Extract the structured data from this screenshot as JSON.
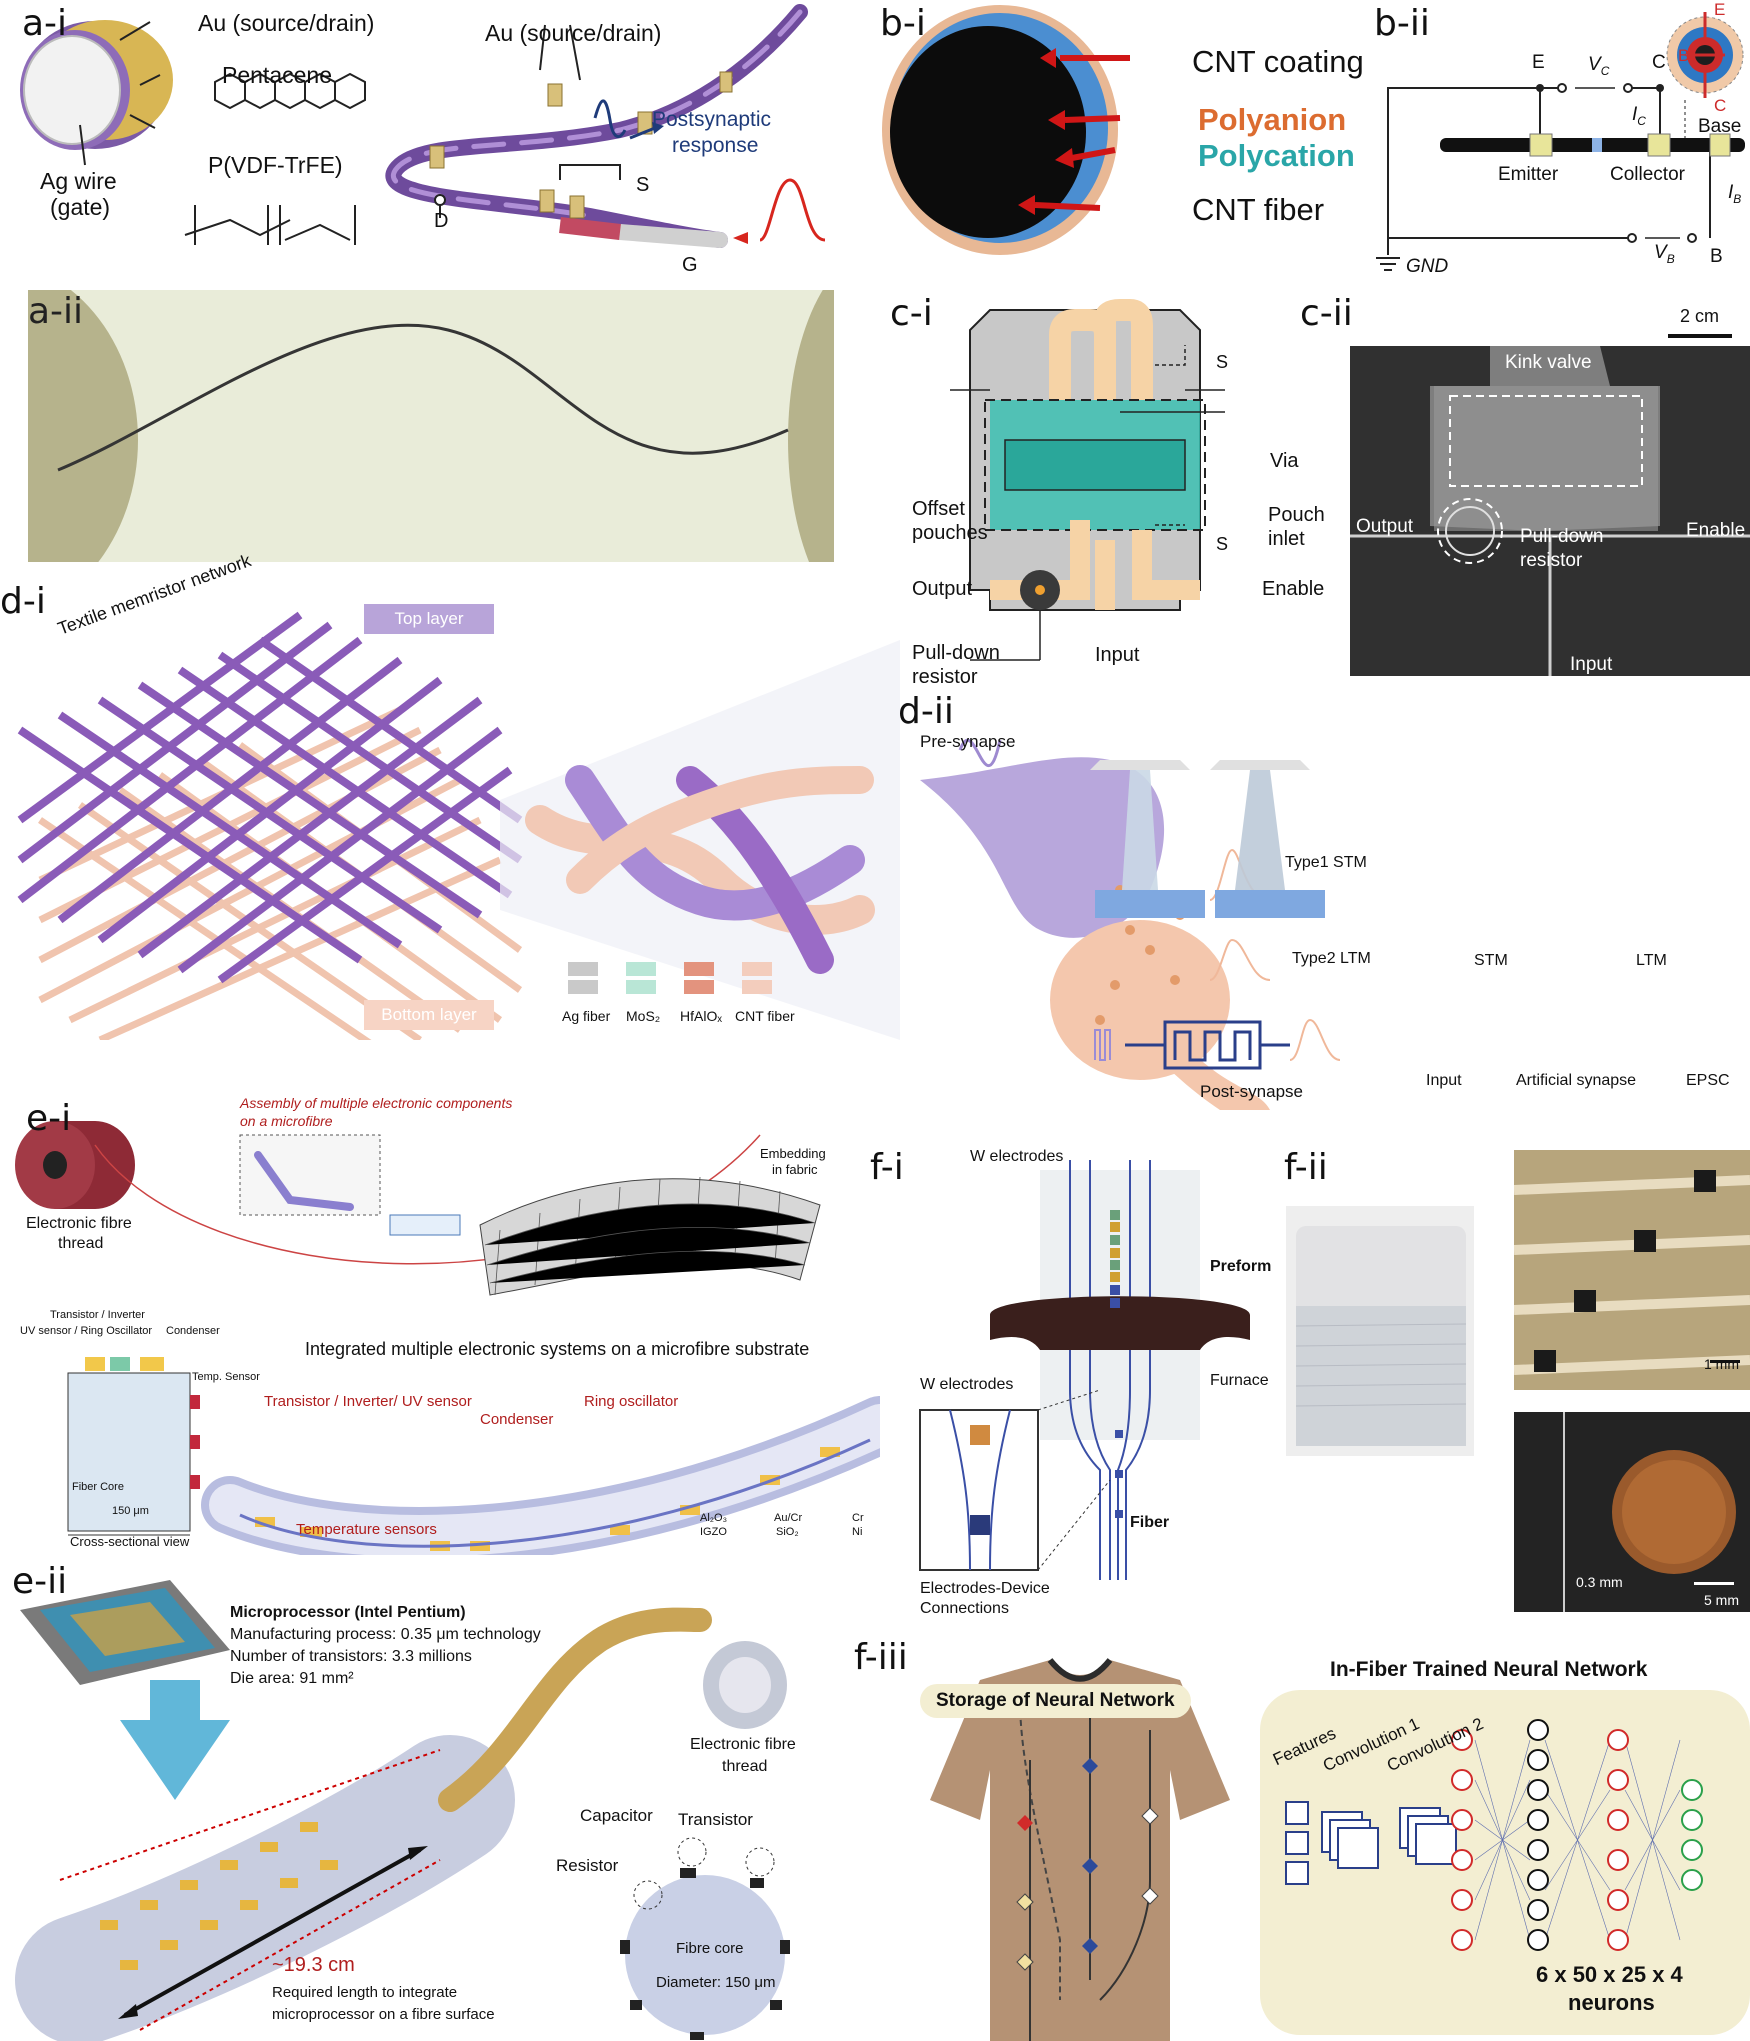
{
  "figure": {
    "a_i": {
      "label": "a-i",
      "au_source_drain_1": "Au (source/drain)",
      "au_source_drain_2": "Au (source/drain)",
      "pentacene": "Pentacene",
      "ag_wire": "Ag wire",
      "gate": "(gate)",
      "pvdf": "P(VDF-TrFE)",
      "postsynaptic_1": "Postsynaptic",
      "postsynaptic_2": "response",
      "terminal_s": "S",
      "terminal_d": "D",
      "terminal_g": "G"
    },
    "a_ii": {
      "label": "a-ii"
    },
    "b_i": {
      "label": "b-i",
      "cnt_coating": "CNT coating",
      "polyanion": "Polyanion",
      "polycation": "Polycation",
      "cnt_fiber": "CNT fiber"
    },
    "b_ii": {
      "label": "b-ii",
      "e": "E",
      "c": "C",
      "b": "B",
      "vc": "V",
      "vc_sub": "C",
      "ic": "I",
      "ic_sub": "C",
      "ib": "I",
      "ib_sub": "B",
      "vb": "V",
      "vb_sub": "B",
      "base": "Base",
      "emitter": "Emitter",
      "collector": "Collector",
      "gnd": "GND",
      "inset_e": "E",
      "inset_b": "B",
      "inset_c": "C"
    },
    "c_i": {
      "label": "c-i",
      "s_top": "S",
      "s_bottom": "S",
      "via": "Via",
      "offset_1": "Offset",
      "offset_2": "pouches",
      "pouch_1": "Pouch",
      "pouch_2": "inlet",
      "output": "Output",
      "enable": "Enable",
      "pulldown_1": "Pull-down",
      "pulldown_2": "resistor",
      "input": "Input"
    },
    "c_ii": {
      "label": "c-ii",
      "scale": "2 cm",
      "kink_valve": "Kink valve",
      "output": "Output",
      "enable": "Enable",
      "pulldown_1": "Pull-down",
      "pulldown_2": "resistor",
      "input": "Input"
    },
    "d_i": {
      "label": "d-i",
      "network": "Textile memristor network",
      "top_layer": "Top layer",
      "bottom_layer": "Bottom layer",
      "legend": [
        {
          "text": "Ag fiber",
          "color": "#c9c9c9"
        },
        {
          "text": "MoS₂",
          "color": "#b9e6d6"
        },
        {
          "text": "HfAlOₓ",
          "color": "#e3937e"
        },
        {
          "text": "CNT fiber",
          "color": "#f3cdbd"
        }
      ]
    },
    "d_ii": {
      "label": "d-ii",
      "pre": "Pre-synapse",
      "post": "Post-synapse",
      "type1": "Type1  STM",
      "type2": "Type2  LTM",
      "stm": "STM",
      "ltm": "LTM",
      "input": "Input",
      "artificial": "Artificial synapse",
      "epsc": "EPSC"
    },
    "e_i": {
      "label": "e-i",
      "assembly_1": "Assembly of multiple electronic components",
      "assembly_2": "on a microfibre",
      "embedding_1": "Embedding",
      "embedding_2": "in fabric",
      "thread_1": "Electronic fibre",
      "thread_2": "thread",
      "transistor_inv": "Transistor / Inverter",
      "uv_ring": "UV sensor / Ring Oscillator",
      "condenser": "Condenser",
      "temp_sensor": "Temp. Sensor",
      "fiber_core": "Fiber Core",
      "width": "150 μm",
      "cross_view": "Cross-sectional view",
      "integrated": "Integrated  multiple electronic systems on a  microfibre substrate",
      "tr_label": "Transistor / Inverter/ UV sensor",
      "condenser_label": "Condenser",
      "ring_label": "Ring oscillator",
      "temp_label": "Temperature sensors",
      "legend": [
        {
          "text": "Al₂O₃",
          "color": "#e8e2da"
        },
        {
          "text": "Au/Cr",
          "color": "#f0c85a"
        },
        {
          "text": "Cr",
          "color": "#a52a2a"
        },
        {
          "text": "IGZO",
          "color": "#7cc9a8"
        },
        {
          "text": "SiO₂",
          "color": "#c5c0e6"
        },
        {
          "text": "Ni",
          "color": "#2f4f7f"
        }
      ]
    },
    "e_ii": {
      "label": "e-ii",
      "micro_title": "Microprocessor (Intel Pentium)",
      "process": "Manufacturing process: 0.35 μm technology",
      "transistors": "Number of transistors: 3.3 millions",
      "die": "Die area: 91 mm²",
      "thread_1": "Electronic fibre",
      "thread_2": "thread",
      "capacitor": "Capacitor",
      "transistor": "Transistor",
      "resistor": "Resistor",
      "core": "Fibre core",
      "diameter": "Diameter: 150 μm",
      "length": "~19.3 cm",
      "req_1": "Required length to integrate",
      "req_2": "microprocessor on a fibre surface"
    },
    "f_i": {
      "label": "f-i",
      "w_top": "W electrodes",
      "preform": "Preform",
      "w_left": "W electrodes",
      "furnace": "Furnace",
      "fiber": "Fiber",
      "conn_1": "Electrodes-Device",
      "conn_2": "Connections"
    },
    "f_ii": {
      "label": "f-ii",
      "scale_1mm": "1 mm",
      "d03": "0.3 mm",
      "scale_5mm": "5 mm"
    },
    "f_iii": {
      "label": "f-iii",
      "storage": "Storage of Neural Network",
      "infiber": "In-Fiber Trained Neural Network",
      "features": "Features",
      "conv1": "Convolution 1",
      "conv2": "Convolution 2",
      "neurons_1": "6 x 50 x 25 x 4",
      "neurons_2": "neurons"
    }
  }
}
